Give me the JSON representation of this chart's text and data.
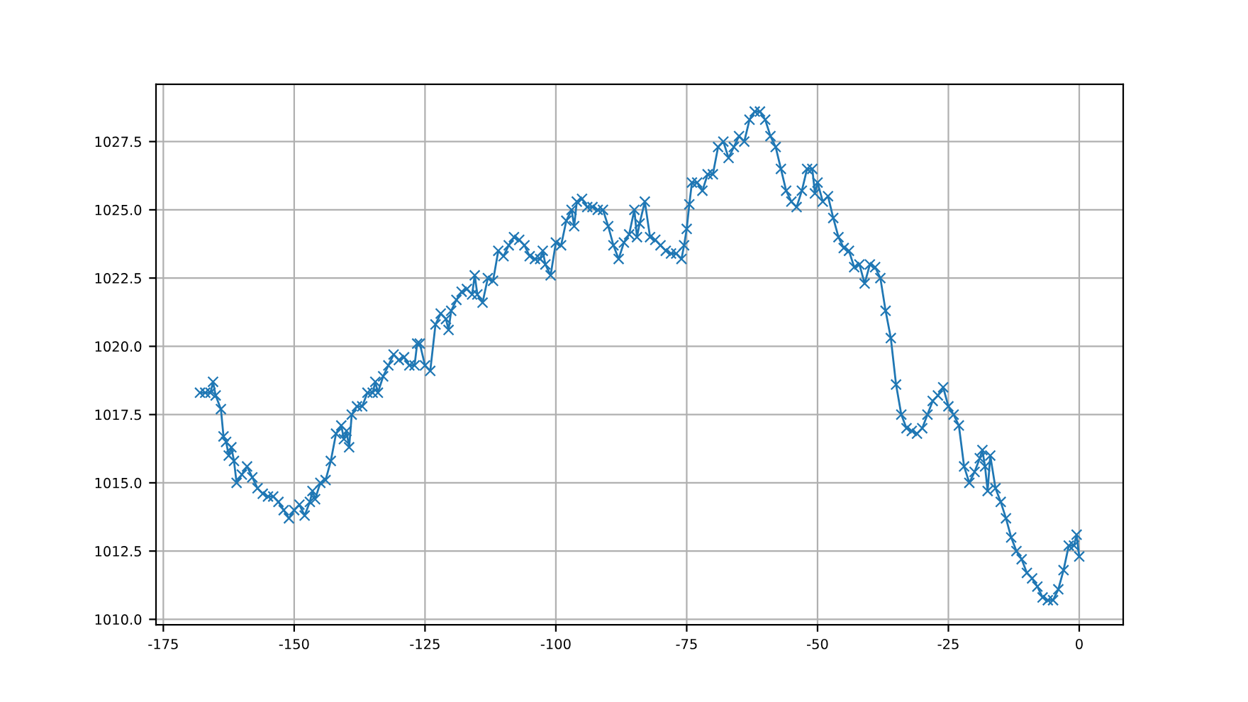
{
  "chart_data": {
    "type": "line",
    "marker": "cross",
    "line_style": "solid",
    "grid": true,
    "x": [
      -168,
      -167,
      -166,
      -165.5,
      -165,
      -164,
      -163.5,
      -163,
      -162.5,
      -162,
      -161.5,
      -161,
      -160,
      -159,
      -158,
      -157,
      -156,
      -155,
      -154,
      -153,
      -152,
      -151,
      -150,
      -149,
      -148,
      -147,
      -146.5,
      -146,
      -145,
      -144,
      -143,
      -142,
      -141,
      -140.5,
      -140,
      -139.5,
      -139,
      -138,
      -137,
      -136,
      -135,
      -134.5,
      -134,
      -133,
      -132,
      -131,
      -130,
      -129,
      -128,
      -127,
      -126.5,
      -126,
      -125,
      -124,
      -123,
      -122,
      -121,
      -120.5,
      -120,
      -119,
      -118,
      -117,
      -116,
      -115.5,
      -115,
      -114,
      -113,
      -112,
      -111,
      -110,
      -109,
      -108,
      -107,
      -106,
      -105,
      -104,
      -103,
      -102.5,
      -102,
      -101,
      -100,
      -99,
      -98,
      -97,
      -96.5,
      -96,
      -95,
      -94,
      -93,
      -92,
      -91,
      -90,
      -89,
      -88,
      -87,
      -86,
      -85,
      -84.5,
      -84,
      -83,
      -82,
      -81,
      -80,
      -79,
      -78,
      -77,
      -76,
      -75.5,
      -75,
      -74.5,
      -74,
      -73,
      -72,
      -71,
      -70,
      -69,
      -68,
      -67,
      -66,
      -65,
      -64,
      -63,
      -62,
      -61,
      -60,
      -59,
      -58,
      -57,
      -56,
      -55,
      -54,
      -53,
      -52,
      -51,
      -50.5,
      -50,
      -49,
      -48,
      -47,
      -46,
      -45,
      -44,
      -43,
      -42,
      -41,
      -40,
      -39,
      -38,
      -37,
      -36,
      -35,
      -34,
      -33,
      -32,
      -31,
      -30,
      -29,
      -28,
      -27,
      -26,
      -25,
      -24,
      -23,
      -22,
      -21,
      -20,
      -19,
      -18.5,
      -18,
      -17.5,
      -17,
      -16,
      -15,
      -14,
      -13,
      -12,
      -11,
      -10,
      -9,
      -8,
      -7,
      -6,
      -5,
      -4,
      -3,
      -2,
      -1,
      -0.5,
      0
    ],
    "series": [
      {
        "color": "#1f77b4",
        "values": [
          1018.3,
          1018.3,
          1018.3,
          1018.7,
          1018.2,
          1017.7,
          1016.7,
          1016.5,
          1016.0,
          1016.3,
          1015.8,
          1015.0,
          1015.3,
          1015.6,
          1015.2,
          1014.8,
          1014.6,
          1014.5,
          1014.5,
          1014.3,
          1014.0,
          1013.7,
          1014.0,
          1014.2,
          1013.8,
          1014.3,
          1014.7,
          1014.4,
          1015.0,
          1015.1,
          1015.8,
          1016.8,
          1017.1,
          1016.6,
          1016.9,
          1016.3,
          1017.5,
          1017.8,
          1017.8,
          1018.3,
          1018.3,
          1018.7,
          1018.3,
          1018.9,
          1019.3,
          1019.7,
          1019.5,
          1019.6,
          1019.3,
          1019.3,
          1020.1,
          1020.1,
          1019.3,
          1019.1,
          1020.8,
          1021.2,
          1021.0,
          1020.6,
          1021.3,
          1021.7,
          1022.0,
          1022.1,
          1021.9,
          1022.6,
          1021.9,
          1021.6,
          1022.5,
          1022.4,
          1023.5,
          1023.3,
          1023.7,
          1024.0,
          1023.9,
          1023.7,
          1023.3,
          1023.2,
          1023.2,
          1023.5,
          1023.0,
          1022.6,
          1023.8,
          1023.7,
          1024.6,
          1025.0,
          1024.4,
          1025.3,
          1025.4,
          1025.1,
          1025.1,
          1025.0,
          1025.0,
          1024.4,
          1023.7,
          1023.2,
          1023.8,
          1024.1,
          1025.0,
          1024.0,
          1024.5,
          1025.3,
          1024.0,
          1023.9,
          1023.7,
          1023.5,
          1023.4,
          1023.4,
          1023.2,
          1023.7,
          1024.3,
          1025.2,
          1026.0,
          1026.0,
          1025.7,
          1026.3,
          1026.3,
          1027.3,
          1027.5,
          1026.9,
          1027.3,
          1027.7,
          1027.5,
          1028.3,
          1028.6,
          1028.6,
          1028.3,
          1027.7,
          1027.3,
          1026.5,
          1025.7,
          1025.3,
          1025.1,
          1025.7,
          1026.5,
          1026.5,
          1025.6,
          1026.0,
          1025.3,
          1025.5,
          1024.7,
          1024.0,
          1023.6,
          1023.5,
          1022.9,
          1023.0,
          1022.3,
          1023.0,
          1022.9,
          1022.5,
          1021.3,
          1020.3,
          1018.6,
          1017.5,
          1017.0,
          1016.9,
          1016.8,
          1017.0,
          1017.5,
          1018.0,
          1018.2,
          1018.5,
          1017.8,
          1017.5,
          1017.1,
          1015.6,
          1015.0,
          1015.4,
          1015.9,
          1016.2,
          1015.6,
          1014.7,
          1016.0,
          1014.8,
          1014.3,
          1013.7,
          1013.0,
          1012.5,
          1012.2,
          1011.7,
          1011.5,
          1011.2,
          1010.8,
          1010.7,
          1010.7,
          1011.1,
          1011.8,
          1012.7,
          1012.7,
          1013.1,
          1012.3
        ]
      }
    ],
    "xlim": [
      -176.4,
      8.4
    ],
    "xticks": [
      -175,
      -150,
      -125,
      -100,
      -75,
      -50,
      -25,
      0
    ],
    "ylim": [
      1009.8,
      1029.6
    ],
    "yticks": [
      {
        "value": 1010,
        "label": "1010.0"
      },
      {
        "value": 1012.5,
        "label": "1012.5"
      },
      {
        "value": 1015,
        "label": "1015.0"
      },
      {
        "value": 1017.5,
        "label": "1017.5"
      },
      {
        "value": 1020,
        "label": "1020.0"
      },
      {
        "value": 1022.5,
        "label": "1022.5"
      },
      {
        "value": 1025,
        "label": "1025.0"
      },
      {
        "value": 1027.5,
        "label": "1027.5"
      }
    ]
  }
}
